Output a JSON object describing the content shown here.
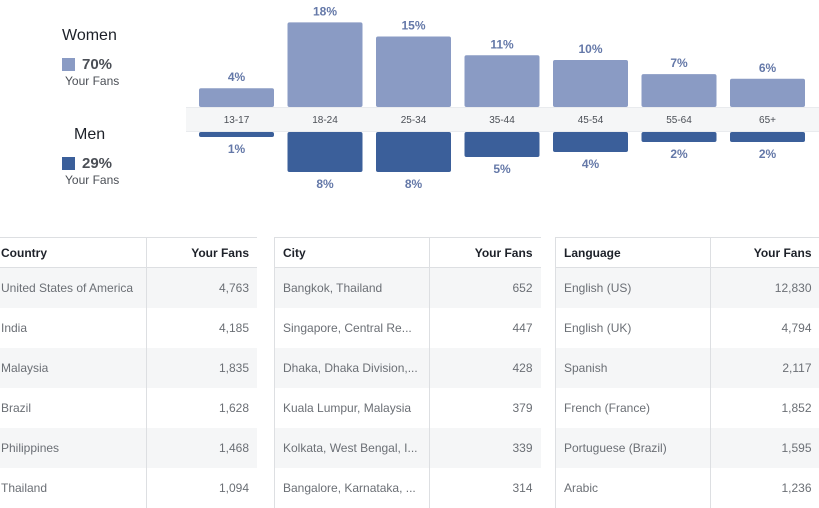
{
  "legend": {
    "women": {
      "title": "Women",
      "pct": "70%",
      "sub": "Your Fans",
      "color": "#8a9bc4"
    },
    "men": {
      "title": "Men",
      "pct": "29%",
      "sub": "Your Fans",
      "color": "#3b5f9a"
    }
  },
  "chart_data": {
    "type": "bar",
    "categories": [
      "13-17",
      "18-24",
      "25-34",
      "35-44",
      "45-54",
      "55-64",
      "65+"
    ],
    "series": [
      {
        "name": "Women",
        "values": [
          4,
          18,
          15,
          11,
          10,
          7,
          6
        ],
        "labels": [
          "4%",
          "18%",
          "15%",
          "11%",
          "10%",
          "7%",
          "6%"
        ],
        "color": "#8a9bc4"
      },
      {
        "name": "Men",
        "values": [
          1,
          8,
          8,
          5,
          4,
          2,
          2
        ],
        "labels": [
          "1%",
          "8%",
          "8%",
          "5%",
          "4%",
          "2%",
          "2%"
        ],
        "color": "#3b5f9a"
      }
    ]
  },
  "tables": {
    "country": {
      "headers": [
        "Country",
        "Your Fans"
      ],
      "rows": [
        [
          "United States of America",
          "4,763"
        ],
        [
          "India",
          "4,185"
        ],
        [
          "Malaysia",
          "1,835"
        ],
        [
          "Brazil",
          "1,628"
        ],
        [
          "Philippines",
          "1,468"
        ],
        [
          "Thailand",
          "1,094"
        ]
      ]
    },
    "city": {
      "headers": [
        "City",
        "Your Fans"
      ],
      "rows": [
        [
          "Bangkok, Thailand",
          "652"
        ],
        [
          "Singapore, Central Re...",
          "447"
        ],
        [
          "Dhaka, Dhaka Division,...",
          "428"
        ],
        [
          "Kuala Lumpur, Malaysia",
          "379"
        ],
        [
          "Kolkata, West Bengal, I...",
          "339"
        ],
        [
          "Bangalore, Karnataka, ...",
          "314"
        ]
      ]
    },
    "language": {
      "headers": [
        "Language",
        "Your Fans"
      ],
      "rows": [
        [
          "English (US)",
          "12,830"
        ],
        [
          "English (UK)",
          "4,794"
        ],
        [
          "Spanish",
          "2,117"
        ],
        [
          "French (France)",
          "1,852"
        ],
        [
          "Portuguese (Brazil)",
          "1,595"
        ],
        [
          "Arabic",
          "1,236"
        ]
      ]
    }
  }
}
